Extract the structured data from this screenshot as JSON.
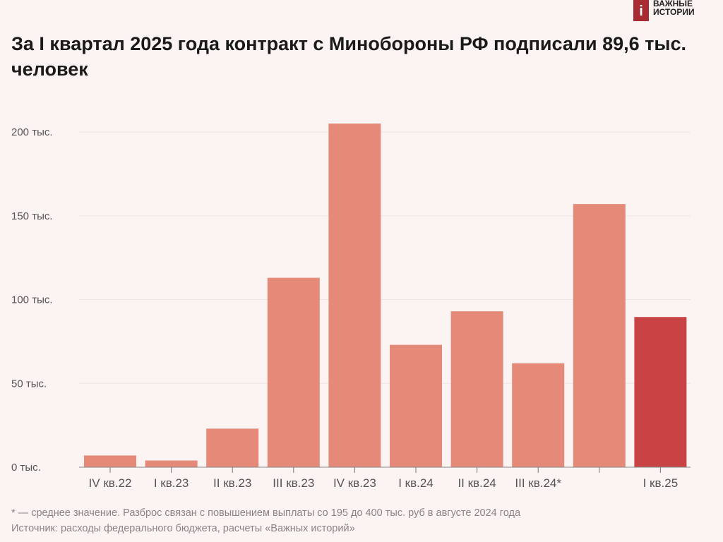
{
  "logo": {
    "line1": "ВАЖНЫЕ",
    "line2": "ИСТОРИИ",
    "mark": "i"
  },
  "title": "За I квартал 2025 года контракт с Минобороны РФ подписали 89,6 тыс. человек",
  "footnote": "* — среднее значение. Разброс связан с повышением выплаты со 195 до 400 тыс. руб в августе 2024 года",
  "source": "Источник: расходы федерального бюджета, расчеты «Важных историй»",
  "colors": {
    "bar": "#e58a78",
    "highlight": "#c94345",
    "background": "#fcf3f3"
  },
  "chart_data": {
    "type": "bar",
    "categories": [
      "IV кв.22",
      "I кв.23",
      "II кв.23",
      "III кв.23",
      "IV кв.23",
      "I кв.24",
      "II кв.24",
      "III кв.24*",
      "",
      "I кв.25"
    ],
    "values": [
      7,
      4,
      23,
      113,
      205,
      73,
      93,
      62,
      157,
      89.6
    ],
    "highlight_index": 9,
    "ylim": [
      0,
      210
    ],
    "yticks": [
      0,
      50,
      100,
      150,
      200
    ],
    "ytick_labels": [
      "0 тыс.",
      "50 тыс.",
      "100 тыс.",
      "150 тыс.",
      "200 тыс."
    ],
    "grid": true,
    "xlabel": "",
    "ylabel": ""
  }
}
